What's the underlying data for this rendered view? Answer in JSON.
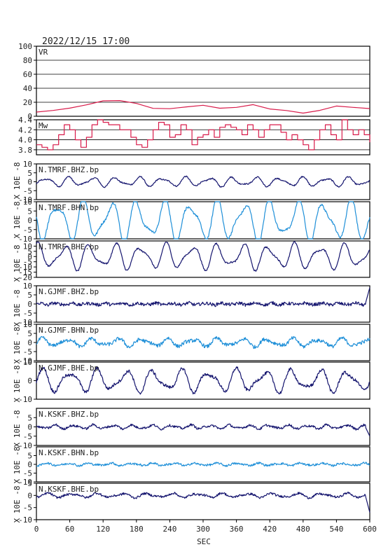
{
  "header": {
    "timestamp": "2022/12/15 17:00"
  },
  "colors": {
    "red": "#d81b4a",
    "navy": "#14146e",
    "light": "#1e8fd8",
    "frame": "#000000"
  },
  "chart_data": {
    "type": "line",
    "xlabel": "SEC",
    "x_range": [
      0,
      600
    ],
    "x_ticks": [
      0,
      60,
      120,
      180,
      240,
      300,
      360,
      420,
      480,
      540,
      600
    ],
    "ylabel_common": "X 10E -8",
    "panels": [
      {
        "label": "VR",
        "ylim": [
          0,
          100
        ],
        "yticks": [
          0,
          20,
          40,
          60,
          80,
          100
        ],
        "grid": true,
        "color_key": "red",
        "style": "line",
        "x": [
          0,
          30,
          60,
          90,
          120,
          150,
          180,
          210,
          240,
          270,
          300,
          330,
          360,
          390,
          420,
          450,
          480,
          510,
          540,
          570,
          600
        ],
        "y": [
          6,
          8,
          12,
          16,
          21,
          22,
          18,
          12,
          10,
          13,
          15,
          11,
          13,
          16,
          11,
          8,
          5,
          9,
          14,
          12,
          11
        ]
      },
      {
        "label": "Mw",
        "ylim": [
          3.7,
          4.4
        ],
        "yticks": [
          3.8,
          4.0,
          4.2,
          4.4
        ],
        "ticklabels": [
          "3.8",
          "4.0",
          "4.2",
          "4.4"
        ],
        "grid": true,
        "color_key": "red",
        "style": "step",
        "x": [
          0,
          10,
          20,
          30,
          40,
          50,
          60,
          70,
          80,
          90,
          100,
          110,
          120,
          130,
          140,
          150,
          160,
          170,
          180,
          190,
          200,
          210,
          220,
          230,
          240,
          250,
          260,
          270,
          280,
          290,
          300,
          310,
          320,
          330,
          340,
          350,
          360,
          370,
          380,
          390,
          400,
          410,
          420,
          430,
          440,
          450,
          460,
          470,
          480,
          490,
          500,
          510,
          520,
          530,
          540,
          550,
          560,
          570,
          580,
          590,
          600
        ],
        "y": [
          3.9,
          3.85,
          3.8,
          3.9,
          4.1,
          4.3,
          4.2,
          4.0,
          3.85,
          4.05,
          4.3,
          4.4,
          4.35,
          4.3,
          4.3,
          4.2,
          4.2,
          4.05,
          3.9,
          3.85,
          4.0,
          4.2,
          4.35,
          4.3,
          4.05,
          4.1,
          4.3,
          4.2,
          3.9,
          4.05,
          4.1,
          4.2,
          4.05,
          4.25,
          4.3,
          4.25,
          4.2,
          4.1,
          4.3,
          4.2,
          4.05,
          4.2,
          4.3,
          4.3,
          4.15,
          4.0,
          4.1,
          4.0,
          3.9,
          3.8,
          4.0,
          4.2,
          4.3,
          4.1,
          4.0,
          4.4,
          4.2,
          4.1,
          4.2,
          4.1,
          3.95
        ]
      },
      {
        "label": "N.TMRF.BHZ.bp",
        "ylim": [
          -10,
          10
        ],
        "yticks": [
          -10,
          -5,
          0,
          5,
          10
        ],
        "color_key": "navy",
        "amp": 3,
        "period": 42,
        "noise": 0.12
      },
      {
        "label": "N.TMRF.BHN.bp",
        "ylim": [
          -10,
          10
        ],
        "yticks": [
          -10,
          -5,
          0,
          5,
          10
        ],
        "color_key": "light",
        "amp": 13,
        "period": 48,
        "noise": 0.05
      },
      {
        "label": "N.TMRF.BHE.bp",
        "ylim": [
          -20,
          15
        ],
        "yticks": [
          -20,
          -15,
          -10,
          -5,
          0,
          5,
          10
        ],
        "color_key": "navy",
        "amp": 14,
        "period": 46,
        "noise": 0.05
      },
      {
        "label": "N.GJMF.BHZ.bp",
        "ylim": [
          -10,
          10
        ],
        "yticks": [
          -10,
          -5,
          0,
          5,
          10
        ],
        "color_key": "navy",
        "amp": 0.6,
        "period": 30,
        "noise": 0.6,
        "spike_end": 9
      },
      {
        "label": "N.GJMF.BHN.bp",
        "ylim": [
          -10,
          10
        ],
        "yticks": [
          -10,
          -5,
          0,
          5,
          10
        ],
        "color_key": "light",
        "amp": 2.5,
        "period": 45,
        "noise": 0.4
      },
      {
        "label": "N.GJMF.BHE.bp",
        "ylim": [
          -10,
          10
        ],
        "yticks": [
          -10,
          0,
          10
        ],
        "color_key": "navy",
        "amp": 7,
        "period": 50,
        "noise": 0.12
      },
      {
        "label": "N.KSKF.BHZ.bp",
        "ylim": [
          -10,
          10
        ],
        "yticks": [
          -10,
          -5,
          0,
          5
        ],
        "color_key": "navy",
        "amp": 1.2,
        "period": 35,
        "noise": 0.4,
        "spike_end": -5
      },
      {
        "label": "N.KSKF.BHN.bp",
        "ylim": [
          -10,
          10
        ],
        "yticks": [
          -10,
          -5,
          0,
          5
        ],
        "color_key": "light",
        "amp": 0.8,
        "period": 38,
        "noise": 0.4
      },
      {
        "label": "N.KSKF.BHE.bp",
        "ylim": [
          -10,
          5
        ],
        "yticks": [
          -10,
          -5,
          0,
          5
        ],
        "color_key": "navy",
        "amp": 1,
        "period": 45,
        "noise": 0.3,
        "spike_end": -7
      }
    ]
  }
}
